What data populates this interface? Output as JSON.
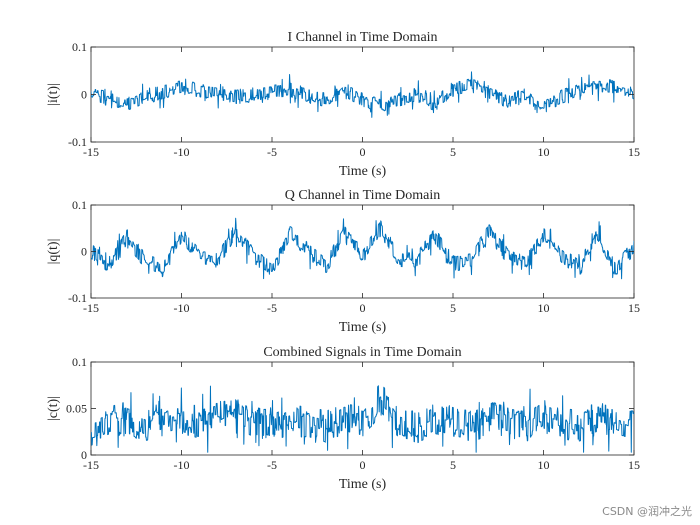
{
  "chart_data": [
    {
      "type": "line",
      "title": "I Channel in Time Domain",
      "xlabel": "Time (s)",
      "ylabel": "|i(t)|",
      "xlim": [
        -15,
        15
      ],
      "ylim": [
        -0.1,
        0.1
      ],
      "xticks": [
        -15,
        -10,
        -5,
        0,
        5,
        10,
        15
      ],
      "yticks": [
        -0.1,
        0,
        0.1
      ],
      "xtick_labels": [
        "-15",
        "-10",
        "-5",
        "0",
        "5",
        "10",
        "15"
      ],
      "ytick_labels": [
        "-0.1",
        "0",
        "0.1"
      ],
      "series": [
        {
          "name": "i(t)",
          "color": "#0072bd",
          "x": [
            -15,
            -14,
            -13,
            -12,
            -11,
            -10,
            -9,
            -8,
            -7,
            -6,
            -5,
            -4,
            -3,
            -2,
            -1,
            0,
            1,
            2,
            3,
            4,
            5,
            6,
            7,
            8,
            9,
            10,
            11,
            12,
            13,
            14,
            15
          ],
          "center": [
            0.0,
            -0.01,
            -0.02,
            -0.005,
            0.005,
            0.015,
            0.01,
            0.0,
            -0.005,
            0.0,
            0.005,
            0.01,
            -0.005,
            -0.01,
            0.01,
            -0.01,
            -0.025,
            -0.01,
            0.0,
            -0.02,
            0.01,
            0.02,
            0.005,
            -0.015,
            0.0,
            -0.025,
            -0.005,
            0.01,
            0.02,
            0.015,
            0.0
          ],
          "spread": 0.03
        }
      ]
    },
    {
      "type": "line",
      "title": "Q Channel in Time Domain",
      "xlabel": "Time (s)",
      "ylabel": "|q(t)|",
      "xlim": [
        -15,
        15
      ],
      "ylim": [
        -0.1,
        0.1
      ],
      "xticks": [
        -15,
        -10,
        -5,
        0,
        5,
        10,
        15
      ],
      "yticks": [
        -0.1,
        0,
        0.1
      ],
      "xtick_labels": [
        "-15",
        "-10",
        "-5",
        "0",
        "5",
        "10",
        "15"
      ],
      "ytick_labels": [
        "-0.1",
        "0",
        "0.1"
      ],
      "series": [
        {
          "name": "q(t)",
          "color": "#0072bd",
          "x": [
            -15,
            -14,
            -13,
            -12,
            -11,
            -10,
            -9,
            -8,
            -7,
            -6,
            -5,
            -4,
            -3,
            -2,
            -1,
            0,
            1,
            2,
            3,
            4,
            5,
            6,
            7,
            8,
            9,
            10,
            11,
            12,
            13,
            14,
            15
          ],
          "center": [
            0.0,
            -0.035,
            0.03,
            -0.02,
            -0.04,
            0.035,
            -0.01,
            -0.02,
            0.045,
            -0.01,
            -0.04,
            0.04,
            0.0,
            -0.03,
            0.04,
            -0.01,
            0.05,
            -0.015,
            -0.02,
            0.035,
            -0.025,
            -0.02,
            0.045,
            -0.01,
            -0.03,
            0.04,
            -0.01,
            -0.035,
            0.035,
            -0.04,
            0.01
          ],
          "spread": 0.035
        }
      ]
    },
    {
      "type": "line",
      "title": "Combined Signals in Time Domain",
      "xlabel": "Time (s)",
      "ylabel": "|c(t)|",
      "xlim": [
        -15,
        15
      ],
      "ylim": [
        0,
        0.1
      ],
      "xticks": [
        -15,
        -10,
        -5,
        0,
        5,
        10,
        15
      ],
      "yticks": [
        0,
        0.05,
        0.1
      ],
      "xtick_labels": [
        "-15",
        "-10",
        "-5",
        "0",
        "5",
        "10",
        "15"
      ],
      "ytick_labels": [
        "0",
        "0.05",
        "0.1"
      ],
      "series": [
        {
          "name": "c(t)",
          "color": "#0072bd",
          "x": [
            -15,
            -14,
            -13,
            -12,
            -11,
            -10,
            -9,
            -8,
            -7,
            -6,
            -5,
            -4,
            -3,
            -2,
            -1,
            0,
            1,
            2,
            3,
            4,
            5,
            6,
            7,
            8,
            9,
            10,
            11,
            12,
            13,
            14,
            15
          ],
          "center": [
            0.025,
            0.035,
            0.04,
            0.03,
            0.035,
            0.04,
            0.035,
            0.04,
            0.045,
            0.035,
            0.03,
            0.04,
            0.035,
            0.03,
            0.04,
            0.035,
            0.06,
            0.035,
            0.03,
            0.04,
            0.035,
            0.03,
            0.04,
            0.035,
            0.03,
            0.045,
            0.035,
            0.03,
            0.04,
            0.035,
            0.03
          ],
          "spread": 0.035
        }
      ]
    }
  ],
  "watermark": "CSDN @润冲之光"
}
